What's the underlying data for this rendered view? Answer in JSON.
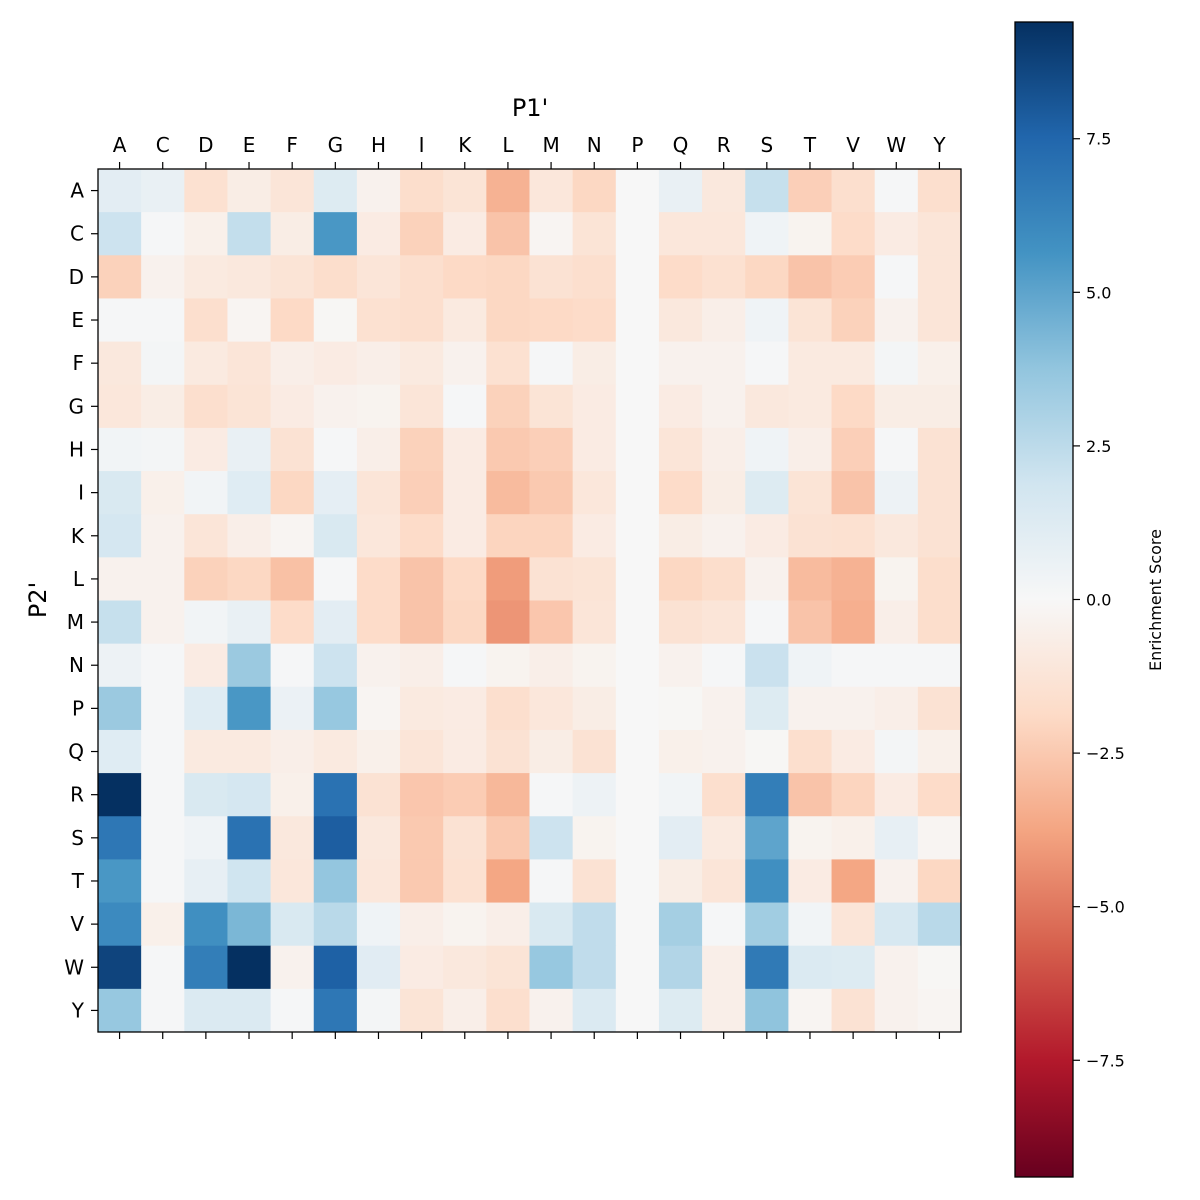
{
  "chart_data": {
    "type": "heatmap",
    "xlabel": "P1'",
    "ylabel": "P2'",
    "x_categories": [
      "A",
      "C",
      "D",
      "E",
      "F",
      "G",
      "H",
      "I",
      "K",
      "L",
      "M",
      "N",
      "P",
      "Q",
      "R",
      "S",
      "T",
      "V",
      "W",
      "Y"
    ],
    "y_categories": [
      "A",
      "C",
      "D",
      "E",
      "F",
      "G",
      "H",
      "I",
      "K",
      "L",
      "M",
      "N",
      "P",
      "Q",
      "R",
      "S",
      "T",
      "V",
      "W",
      "Y"
    ],
    "colormap": "RdBu",
    "vmin": -9.4,
    "vmax": 9.4,
    "colorbar": {
      "label": "Enrichment Score",
      "ticks": [
        7.5,
        5.0,
        2.5,
        0.0,
        -2.5,
        -5.0,
        -7.5
      ],
      "tick_labels": [
        "7.5",
        "5.0",
        "2.5",
        "0.0",
        "−2.5",
        "−5.0",
        "−7.5"
      ],
      "placement": "right"
    },
    "values": [
      [
        1.0,
        0.7,
        -1.5,
        -0.7,
        -1.2,
        1.3,
        -0.4,
        -1.7,
        -1.3,
        -3.3,
        -1.1,
        -2.0,
        0,
        0.7,
        -1.0,
        2.2,
        -2.3,
        -1.6,
        0.1,
        -1.6
      ],
      [
        2.0,
        0.1,
        -0.5,
        2.3,
        -0.7,
        5.5,
        -0.8,
        -2.2,
        -0.8,
        -2.7,
        -0.2,
        -1.3,
        0,
        -1.1,
        -1.1,
        0.4,
        -0.3,
        -1.8,
        -0.8,
        -1.2
      ],
      [
        -2.2,
        -0.4,
        -0.9,
        -1.0,
        -1.3,
        -1.7,
        -1.2,
        -1.6,
        -1.9,
        -2.0,
        -1.4,
        -1.6,
        0,
        -1.8,
        -1.5,
        -2.0,
        -2.7,
        -2.4,
        0.1,
        -1.2
      ],
      [
        0.1,
        0.1,
        -1.6,
        -0.2,
        -1.9,
        -0.1,
        -1.5,
        -1.6,
        -0.9,
        -2.0,
        -1.9,
        -1.8,
        0,
        -1.0,
        -0.6,
        0.4,
        -1.3,
        -2.2,
        -0.4,
        -1.2
      ],
      [
        -1.0,
        0.2,
        -0.9,
        -1.2,
        -0.6,
        -0.8,
        -0.6,
        -0.9,
        -0.4,
        -1.5,
        0.1,
        -0.7,
        0,
        -0.4,
        -0.4,
        0.1,
        -0.9,
        -0.9,
        0.2,
        -0.5
      ],
      [
        -1.1,
        -0.7,
        -1.6,
        -1.3,
        -0.8,
        -0.4,
        -0.3,
        -1.2,
        0.1,
        -2.2,
        -1.3,
        -0.8,
        0,
        -0.8,
        -0.4,
        -1.0,
        -0.9,
        -1.9,
        -0.7,
        -0.7
      ],
      [
        0.3,
        0.2,
        -0.8,
        0.7,
        -1.4,
        0.1,
        -0.6,
        -2.2,
        -0.8,
        -2.5,
        -2.3,
        -0.8,
        0,
        -1.2,
        -0.6,
        0.4,
        -0.6,
        -2.3,
        0.1,
        -1.4
      ],
      [
        1.5,
        -0.5,
        0.3,
        1.2,
        -2.0,
        0.9,
        -1.2,
        -2.3,
        -0.8,
        -3.0,
        -2.5,
        -1.1,
        0,
        -1.8,
        -0.7,
        1.3,
        -1.3,
        -2.7,
        0.5,
        -1.4
      ],
      [
        1.7,
        -0.4,
        -1.2,
        -0.6,
        -0.2,
        1.5,
        -1.1,
        -1.8,
        -0.8,
        -2.1,
        -2.1,
        -0.8,
        0,
        -0.7,
        -0.4,
        -0.8,
        -1.4,
        -1.5,
        -1.0,
        -1.4
      ],
      [
        -0.4,
        -0.4,
        -2.2,
        -2.0,
        -2.8,
        0.1,
        -1.8,
        -2.7,
        -1.9,
        -4.0,
        -1.4,
        -1.3,
        0,
        -2.0,
        -1.7,
        -0.4,
        -3.0,
        -3.3,
        -0.3,
        -1.7
      ],
      [
        2.2,
        -0.4,
        0.3,
        0.7,
        -1.8,
        1.0,
        -1.8,
        -2.7,
        -2.0,
        -4.2,
        -2.6,
        -1.2,
        0,
        -1.4,
        -1.2,
        0.1,
        -2.7,
        -3.4,
        -0.6,
        -1.7
      ],
      [
        0.5,
        0.1,
        -0.8,
        3.5,
        0.1,
        2.0,
        -0.4,
        -0.6,
        0.1,
        -0.3,
        -0.6,
        -0.3,
        0,
        -0.4,
        0.1,
        2.1,
        0.4,
        0.1,
        0.1,
        0.1
      ],
      [
        3.5,
        0.1,
        1.2,
        5.5,
        0.6,
        3.6,
        -0.2,
        -0.9,
        -0.8,
        -1.6,
        -1.1,
        -0.7,
        0,
        -0.1,
        -0.4,
        1.3,
        -0.4,
        -0.4,
        -0.6,
        -1.4
      ],
      [
        1.2,
        0.1,
        -0.9,
        -0.9,
        -0.6,
        -0.9,
        -0.5,
        -1.2,
        -0.8,
        -1.4,
        -0.7,
        -1.4,
        0,
        -0.5,
        -0.4,
        -0.1,
        -1.6,
        -0.8,
        0.2,
        -0.5
      ],
      [
        9.4,
        0.1,
        1.5,
        1.7,
        -0.5,
        7.0,
        -1.4,
        -2.6,
        -2.4,
        -3.1,
        0.1,
        0.5,
        0,
        0.3,
        -1.6,
        6.5,
        -2.7,
        -2.1,
        -0.8,
        -1.8
      ],
      [
        6.8,
        0.1,
        0.4,
        7.0,
        -1.0,
        7.8,
        -1.0,
        -2.5,
        -1.4,
        -2.5,
        2.0,
        -0.3,
        0,
        1.0,
        -0.9,
        5.0,
        -0.3,
        -0.5,
        0.8,
        -0.2
      ],
      [
        5.5,
        0.1,
        0.8,
        1.9,
        -1.1,
        3.7,
        -1.1,
        -2.5,
        -1.5,
        -3.7,
        0.1,
        -1.4,
        0,
        -0.7,
        -1.2,
        5.8,
        -0.8,
        -3.7,
        -0.4,
        -2.0
      ],
      [
        6.0,
        -0.5,
        5.8,
        4.3,
        1.5,
        2.6,
        0.4,
        -0.6,
        -0.3,
        -0.6,
        1.5,
        2.4,
        0,
        3.2,
        0.1,
        3.3,
        0.3,
        -1.2,
        1.6,
        2.6
      ],
      [
        8.7,
        0.1,
        6.5,
        9.4,
        -0.4,
        7.7,
        1.1,
        -0.8,
        -1.0,
        -1.3,
        3.6,
        2.4,
        0,
        2.8,
        -0.6,
        6.7,
        1.4,
        1.3,
        -0.4,
        -0.1
      ],
      [
        3.6,
        0.1,
        1.4,
        1.4,
        0.1,
        6.8,
        0.2,
        -1.3,
        -0.6,
        -1.6,
        -0.4,
        1.4,
        0,
        1.3,
        -0.6,
        3.8,
        -0.2,
        -1.4,
        -0.4,
        -0.2
      ]
    ]
  }
}
